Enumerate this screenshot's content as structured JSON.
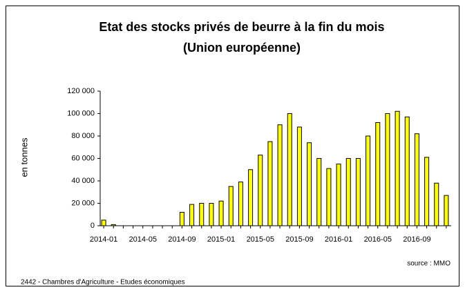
{
  "chart_data": {
    "type": "bar",
    "title": "Etat des stocks privés de beurre à la fin du mois",
    "subtitle": "(Union européenne)",
    "y_label": "en tonnes",
    "source": "source : MMO",
    "footer": "2442 - Chambres d'Agriculture - Etudes économiques",
    "categories": [
      "2014-01",
      null,
      null,
      null,
      "2014-05",
      null,
      null,
      null,
      "2014-09",
      null,
      null,
      null,
      "2015-01",
      null,
      null,
      null,
      "2015-05",
      null,
      null,
      null,
      "2015-09",
      null,
      null,
      null,
      "2016-01",
      null,
      null,
      null,
      "2016-05",
      null,
      null,
      null,
      "2016-09",
      null,
      null,
      null
    ],
    "values": [
      5000,
      1000,
      0,
      0,
      0,
      0,
      0,
      0,
      12000,
      19000,
      20000,
      20000,
      22000,
      35000,
      39000,
      50000,
      63000,
      75000,
      90000,
      100000,
      88000,
      74000,
      60000,
      51000,
      55000,
      60000,
      60000,
      80000,
      92000,
      100000,
      102000,
      97000,
      82000,
      61000,
      38000,
      27000
    ],
    "color": "#ffff00",
    "ylim": [
      0,
      120000
    ],
    "yticks": [
      0,
      {
        "value": 20000,
        "label": "20 000"
      },
      {
        "value": 40000,
        "label": "40 000"
      },
      {
        "value": 60000,
        "label": "60 000"
      },
      {
        "value": 80000,
        "label": "80 000"
      },
      {
        "value": 100000,
        "label": "100 000"
      },
      {
        "value": 120000,
        "label": "120 000"
      }
    ],
    "grid": false
  }
}
